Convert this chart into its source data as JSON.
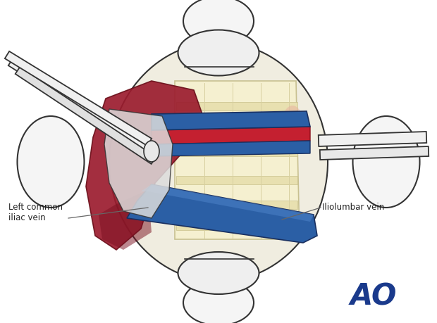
{
  "bg_color": "#ffffff",
  "ao_color": "#1a3a8c",
  "label_color": "#222222",
  "outline_color": "#333333",
  "red_vessel_color": "#9b1c2e",
  "blue_vessel_color": "#2b5fa5",
  "spine_color": "#f5f0d0",
  "spine_stripe_color": "#e8e0b0",
  "retractor_color": "#e8e8e8",
  "skin_oval_color": "#f0ede0",
  "label_left": "Left common\niliac vein",
  "label_right": "Iliolumbar vein",
  "ao_text": "AO",
  "figsize": [
    6.2,
    4.59
  ],
  "dpi": 100
}
